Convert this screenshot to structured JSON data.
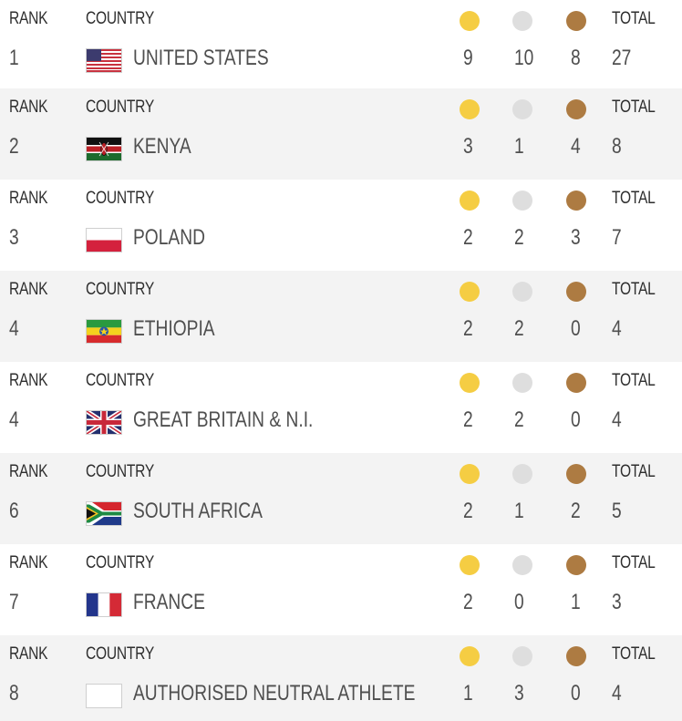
{
  "headers": {
    "rank": "RANK",
    "country": "COUNTRY",
    "total": "TOTAL"
  },
  "medal_colors": {
    "gold": "#f5cd43",
    "silver": "#dedede",
    "bronze": "#ad7b42"
  },
  "rows": [
    {
      "rank": "1",
      "country": "UNITED STATES",
      "flag": "flag-usa",
      "gold": "9",
      "silver": "10",
      "bronze": "8",
      "total": "27"
    },
    {
      "rank": "2",
      "country": "KENYA",
      "flag": "flag-kenya",
      "gold": "3",
      "silver": "1",
      "bronze": "4",
      "total": "8"
    },
    {
      "rank": "3",
      "country": "POLAND",
      "flag": "flag-poland",
      "gold": "2",
      "silver": "2",
      "bronze": "3",
      "total": "7"
    },
    {
      "rank": "4",
      "country": "ETHIOPIA",
      "flag": "flag-ethiopia",
      "gold": "2",
      "silver": "2",
      "bronze": "0",
      "total": "4"
    },
    {
      "rank": "4",
      "country": "GREAT BRITAIN & N.I.",
      "flag": "flag-great-britain",
      "gold": "2",
      "silver": "2",
      "bronze": "0",
      "total": "4"
    },
    {
      "rank": "6",
      "country": "SOUTH AFRICA",
      "flag": "flag-south-africa",
      "gold": "2",
      "silver": "1",
      "bronze": "2",
      "total": "5"
    },
    {
      "rank": "7",
      "country": "FRANCE",
      "flag": "flag-france",
      "gold": "2",
      "silver": "0",
      "bronze": "1",
      "total": "3"
    },
    {
      "rank": "8",
      "country": "AUTHORISED NEUTRAL ATHLETE",
      "flag": "flag-blank",
      "gold": "1",
      "silver": "3",
      "bronze": "0",
      "total": "4"
    }
  ]
}
